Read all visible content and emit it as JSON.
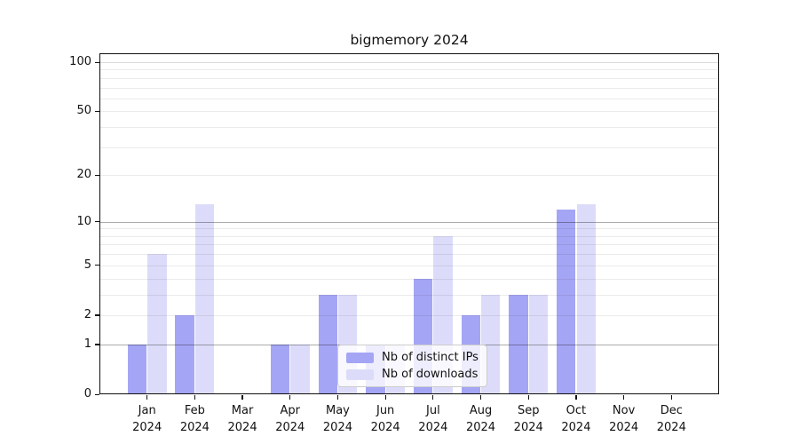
{
  "title": "bigmemory 2024",
  "legend": {
    "items": [
      {
        "label": "Nb of distinct IPs",
        "color": "#a5a5f5"
      },
      {
        "label": "Nb of downloads",
        "color": "#dcdcfa"
      }
    ]
  },
  "y_axis": {
    "tick_labels": [
      "100",
      "50",
      "20",
      "10",
      "5",
      "2",
      "1",
      "0"
    ],
    "tick_values": [
      100,
      50,
      20,
      10,
      5,
      2,
      1,
      0
    ]
  },
  "x_axis": {
    "tick_labels_line1": [
      "Jan",
      "Feb",
      "Mar",
      "Apr",
      "May",
      "Jun",
      "Jul",
      "Aug",
      "Sep",
      "Oct",
      "Nov",
      "Dec"
    ],
    "tick_labels_line2": "2024"
  },
  "chart_data": {
    "type": "bar",
    "title": "bigmemory 2024",
    "categories": [
      "Jan 2024",
      "Feb 2024",
      "Mar 2024",
      "Apr 2024",
      "May 2024",
      "Jun 2024",
      "Jul 2024",
      "Aug 2024",
      "Sep 2024",
      "Oct 2024",
      "Nov 2024",
      "Dec 2024"
    ],
    "series": [
      {
        "name": "Nb of distinct IPs",
        "color": "#a5a5f5",
        "values": [
          1,
          2,
          0,
          1,
          3,
          1,
          4,
          2,
          3,
          12,
          0,
          0
        ]
      },
      {
        "name": "Nb of downloads",
        "color": "#dcdcfa",
        "values": [
          6,
          13,
          0,
          1,
          3,
          1,
          8,
          3,
          3,
          13,
          0,
          0
        ]
      }
    ],
    "yscale": "log1p",
    "ylim": [
      0,
      113
    ],
    "y_tick_values": [
      100,
      50,
      20,
      10,
      5,
      2,
      1,
      0
    ],
    "y_gridlines_major": [
      1,
      10,
      100
    ],
    "y_gridlines_minor": [
      2,
      3,
      4,
      5,
      6,
      7,
      8,
      9,
      20,
      30,
      40,
      50,
      60,
      70,
      80,
      90
    ],
    "grid": true,
    "legend_position": "lower center"
  }
}
